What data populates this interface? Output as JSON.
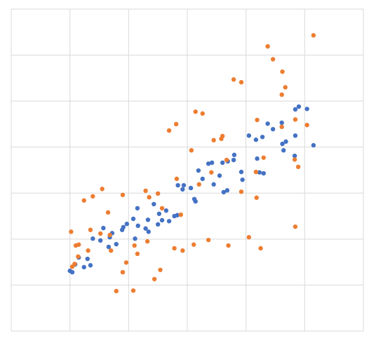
{
  "chart_data": {
    "type": "scatter",
    "xlim": [
      0,
      6
    ],
    "ylim": [
      0,
      7
    ],
    "xticks": [
      0,
      1,
      2,
      3,
      4,
      5,
      6
    ],
    "yticks": [
      0,
      1,
      2,
      3,
      4,
      5,
      6,
      7
    ],
    "grid": true,
    "series": [
      {
        "color": "#4472c4",
        "x": [
          1.0,
          1.04,
          1.09,
          1.15,
          1.24,
          1.3,
          1.35,
          1.39,
          1.52,
          1.57,
          1.66,
          1.68,
          1.72,
          1.79,
          1.89,
          1.91,
          1.97,
          2.08,
          2.11,
          2.15,
          2.16,
          2.29,
          2.34,
          2.33,
          2.43,
          2.5,
          2.52,
          2.57,
          2.64,
          2.69,
          2.78,
          2.83,
          2.84,
          2.92,
          2.94,
          3.06,
          3.12,
          3.14,
          3.19,
          3.26,
          3.36,
          3.42,
          3.45,
          3.55,
          3.6,
          3.62,
          3.68,
          3.69,
          3.79,
          3.8,
          3.92,
          3.94,
          4.05,
          4.17,
          4.19,
          4.23,
          4.28,
          4.3,
          4.37,
          4.46,
          4.61,
          4.62,
          4.64,
          4.68,
          4.84,
          4.84,
          4.9,
          4.83,
          5.04,
          5.15
        ],
        "values": [
          1.31,
          1.28,
          1.45,
          1.6,
          1.39,
          1.57,
          1.43,
          2.01,
          1.97,
          2.24,
          1.83,
          2.04,
          2.13,
          1.89,
          2.2,
          2.26,
          2.33,
          2.44,
          2.01,
          2.67,
          2.29,
          2.23,
          2.16,
          2.42,
          2.76,
          2.32,
          2.55,
          2.41,
          2.62,
          2.39,
          2.5,
          2.52,
          3.17,
          3.08,
          3.17,
          3.11,
          2.87,
          2.82,
          3.49,
          3.31,
          3.64,
          3.66,
          3.19,
          3.38,
          3.66,
          3.02,
          3.06,
          3.69,
          3.72,
          3.83,
          3.46,
          3.29,
          4.25,
          4.16,
          3.75,
          3.45,
          4.22,
          3.43,
          4.51,
          4.39,
          4.53,
          4.07,
          3.93,
          4.12,
          4.25,
          4.82,
          4.88,
          3.81,
          4.83,
          4.04
        ]
      },
      {
        "color": "#ed7d31",
        "x": [
          5.15,
          4.37,
          4.46,
          4.62,
          4.61,
          4.67,
          3.79,
          3.92,
          3.14,
          3.26,
          2.81,
          2.69,
          3.45,
          3.6,
          3.58,
          3.07,
          3.67,
          3.41,
          3.2,
          2.82,
          2.5,
          2.35,
          2.29,
          2.57,
          2.89,
          1.9,
          1.55,
          1.39,
          1.24,
          1.65,
          1.02,
          1.35,
          1.15,
          1.1,
          1.31,
          1.52,
          1.68,
          1.7,
          1.14,
          1.08,
          1.04,
          1.96,
          1.9,
          2.1,
          2.15,
          2.32,
          1.79,
          2.08,
          2.44,
          2.54,
          2.78,
          2.92,
          3.11,
          3.36,
          3.7,
          4.05,
          4.25,
          4.18,
          4.17,
          3.92,
          4.19,
          4.3,
          4.61,
          4.84,
          4.83,
          4.89,
          5.04,
          4.84
        ],
        "values": [
          6.43,
          6.19,
          5.91,
          5.64,
          5.14,
          5.3,
          5.47,
          5.41,
          4.77,
          4.73,
          4.5,
          4.36,
          4.15,
          4.24,
          4.18,
          3.93,
          3.72,
          3.45,
          3.19,
          3.31,
          2.99,
          2.91,
          3.05,
          2.67,
          2.53,
          2.96,
          3.09,
          2.93,
          2.84,
          2.58,
          2.16,
          2.2,
          1.88,
          1.86,
          1.75,
          2.12,
          2.09,
          1.75,
          1.62,
          1.46,
          1.4,
          1.49,
          1.28,
          1.86,
          1.68,
          1.95,
          0.87,
          0.88,
          1.13,
          1.33,
          1.8,
          1.75,
          1.88,
          1.98,
          1.86,
          2.04,
          1.8,
          2.9,
          3.46,
          3.03,
          4.59,
          3.77,
          4.44,
          4.6,
          3.73,
          3.57,
          4.48,
          2.27
        ]
      }
    ]
  }
}
